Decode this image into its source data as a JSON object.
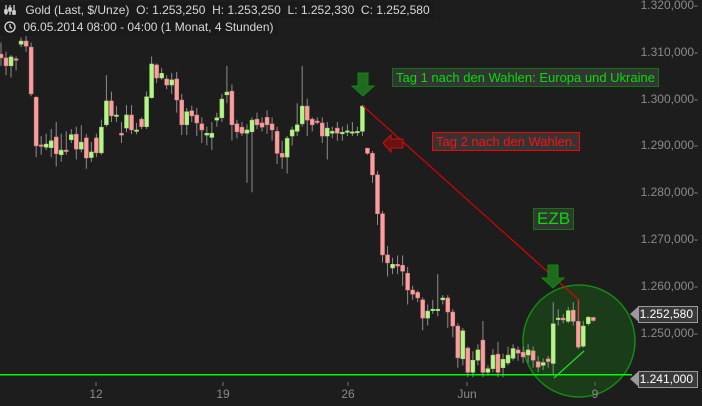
{
  "header": {
    "instrument": "Gold (Last, $/Unze)",
    "open": "O: 1.253,250",
    "high": "H: 1.253,250",
    "low": "L: 1.252,330",
    "close": "C: 1.252,580",
    "period": "06.05.2014 08:00 - 04:00 (1 Monat, 4 Stunden)"
  },
  "annotations": {
    "tag1": "Tag 1 nach den Wahlen: Europa und Ukraine",
    "tag2": "Tag 2 nach den Wahlen.",
    "ezb": "EZB"
  },
  "price_tags": {
    "last": "1.252,580",
    "level": "1.241,000"
  },
  "colors": {
    "background": "#1e1d1d",
    "up": "#b6f58a",
    "down": "#f7a0a0",
    "wick": "#8c8c8c",
    "support_line": "#00ff00",
    "trend_line": "#e00000",
    "tag1": "#00e000",
    "tag2": "#ff0000"
  },
  "chart_data": {
    "type": "candlestick",
    "y_ticks": [
      "1.320,000",
      "1.310,000",
      "1.300,000",
      "1.290,000",
      "1.280,000",
      "1.270,000",
      "1.260,000",
      "1.250,000"
    ],
    "y_tick_values": [
      1320,
      1310,
      1300,
      1290,
      1280,
      1270,
      1260,
      1250
    ],
    "x_ticks": [
      "12",
      "19",
      "26",
      "Jun",
      "9"
    ],
    "ylim": [
      1238,
      1321
    ],
    "support_level": 1241.0,
    "last_price": 1252.58,
    "candles_ohlc": [
      [
        1309.5,
        1312,
        1307,
        1308.7
      ],
      [
        1308.7,
        1310,
        1305,
        1307
      ],
      [
        1307,
        1309.3,
        1304.5,
        1308.9
      ],
      [
        1308.5,
        1309,
        1306,
        1308.2
      ],
      [
        1311.6,
        1313,
        1311,
        1312.3
      ],
      [
        1312.3,
        1315,
        1310,
        1311.2
      ],
      [
        1311,
        1312,
        1300.5,
        1301
      ],
      [
        1300.3,
        1300.5,
        1287.5,
        1289.9
      ],
      [
        1290.1,
        1292,
        1288,
        1289.9
      ],
      [
        1289.6,
        1292.5,
        1289,
        1290.3
      ],
      [
        1289.5,
        1293.5,
        1287.5,
        1291
      ],
      [
        1291.8,
        1295,
        1285.5,
        1288.2
      ],
      [
        1288,
        1292.5,
        1286.5,
        1289
      ],
      [
        1289,
        1293,
        1288,
        1288.8
      ],
      [
        1291.2,
        1293.5,
        1290.5,
        1292.3
      ],
      [
        1292.4,
        1294,
        1287,
        1289.2
      ],
      [
        1289.2,
        1294.3,
        1288.5,
        1290.7
      ],
      [
        1291.6,
        1292.4,
        1285,
        1287.3
      ],
      [
        1287.4,
        1290.7,
        1286.5,
        1288.6
      ],
      [
        1291.6,
        1292.5,
        1287.5,
        1288.4
      ],
      [
        1288.4,
        1295.5,
        1288,
        1293.9
      ],
      [
        1294.4,
        1305,
        1294,
        1299.5
      ],
      [
        1299.5,
        1301.5,
        1295,
        1296.3
      ],
      [
        1296.5,
        1298.4,
        1295,
        1296.5
      ],
      [
        1292.6,
        1295,
        1290.5,
        1292.2
      ],
      [
        1293.7,
        1298.6,
        1292.8,
        1296.5
      ],
      [
        1296.5,
        1298.6,
        1292.4,
        1293.3
      ],
      [
        1293.3,
        1294.8,
        1292.4,
        1293.3
      ],
      [
        1295.6,
        1296,
        1293.5,
        1294
      ],
      [
        1294,
        1301.5,
        1293.5,
        1300.4
      ],
      [
        1300.2,
        1309,
        1300,
        1307.4
      ],
      [
        1307.2,
        1307.5,
        1303.3,
        1304.4
      ],
      [
        1304.4,
        1306.5,
        1304,
        1305.4
      ],
      [
        1304.2,
        1305,
        1302,
        1302.9
      ],
      [
        1302.9,
        1305.5,
        1301,
        1304
      ],
      [
        1304.2,
        1305.7,
        1297,
        1299.7
      ],
      [
        1299.7,
        1301,
        1292.2,
        1294.4
      ],
      [
        1294.4,
        1298,
        1292.2,
        1297.2
      ],
      [
        1297.4,
        1298.5,
        1295,
        1296.3
      ],
      [
        1296.5,
        1298,
        1292,
        1294.8
      ],
      [
        1294.6,
        1296,
        1290.5,
        1293.3
      ],
      [
        1292.2,
        1294,
        1290,
        1292.6
      ],
      [
        1291.7,
        1295,
        1289,
        1292.6
      ],
      [
        1295.4,
        1297,
        1294,
        1295.9
      ],
      [
        1295.9,
        1301,
        1295,
        1299.9
      ],
      [
        1300.8,
        1307,
        1299,
        1301.4
      ],
      [
        1301.6,
        1303,
        1291,
        1294.4
      ],
      [
        1294.6,
        1295.5,
        1291.5,
        1292.9
      ],
      [
        1293.9,
        1295,
        1292,
        1292.6
      ],
      [
        1292.6,
        1294.5,
        1282,
        1293.3
      ],
      [
        1292.9,
        1296,
        1280,
        1295.4
      ],
      [
        1295.6,
        1297,
        1293.5,
        1294.4
      ],
      [
        1294.8,
        1296,
        1293,
        1293.9
      ],
      [
        1296,
        1297.5,
        1292.5,
        1294.4
      ],
      [
        1294.6,
        1296,
        1291,
        1293.3
      ],
      [
        1293,
        1294,
        1286,
        1288.3
      ],
      [
        1288.3,
        1291,
        1285,
        1287.5
      ],
      [
        1287.5,
        1292,
        1284,
        1291.5
      ],
      [
        1292,
        1294,
        1290,
        1293.3
      ],
      [
        1293,
        1299,
        1292,
        1294.4
      ],
      [
        1294.6,
        1307,
        1294,
        1298.4
      ],
      [
        1298.4,
        1300,
        1292,
        1295.4
      ],
      [
        1295.6,
        1296,
        1293,
        1294.4
      ],
      [
        1295.2,
        1296,
        1294.5,
        1295
      ],
      [
        1294.8,
        1296,
        1290.5,
        1292
      ],
      [
        1292,
        1295,
        1287,
        1293.7
      ],
      [
        1292.6,
        1294,
        1291.5,
        1293
      ],
      [
        1293.7,
        1295,
        1291,
        1292.6
      ],
      [
        1292.8,
        1294,
        1291,
        1292.8
      ],
      [
        1293,
        1294.5,
        1292,
        1293.1
      ],
      [
        1292.8,
        1295,
        1292,
        1292.9
      ],
      [
        1292.7,
        1294,
        1292,
        1293
      ],
      [
        1293,
        1298.6,
        1292,
        1298.4
      ],
      [
        1289.4,
        1289.5,
        1288,
        1288.3
      ],
      [
        1288.3,
        1288.8,
        1282,
        1283.7
      ],
      [
        1283.7,
        1284.5,
        1273,
        1275.4
      ],
      [
        1275.4,
        1276,
        1265,
        1266.6
      ],
      [
        1266.6,
        1268.5,
        1262,
        1264.9
      ],
      [
        1263.8,
        1266,
        1262.5,
        1264.6
      ],
      [
        1264.6,
        1266.5,
        1262.5,
        1264.2
      ],
      [
        1264.4,
        1266.5,
        1260,
        1263.1
      ],
      [
        1262.7,
        1264,
        1256,
        1259.1
      ],
      [
        1259.1,
        1260,
        1257,
        1258.2
      ],
      [
        1258.6,
        1259,
        1256.5,
        1257.4
      ],
      [
        1257,
        1257.5,
        1250.5,
        1253.1
      ],
      [
        1253.1,
        1256,
        1251.5,
        1254.6
      ],
      [
        1254.8,
        1257,
        1254,
        1255
      ],
      [
        1255,
        1262.5,
        1253.5,
        1255
      ],
      [
        1257,
        1258,
        1256,
        1257.4
      ],
      [
        1257.4,
        1258,
        1251,
        1254.4
      ],
      [
        1254.4,
        1255,
        1249,
        1251.4
      ],
      [
        1251.4,
        1252,
        1242.5,
        1244.6
      ],
      [
        1244.4,
        1251,
        1243,
        1250.4
      ],
      [
        1246.7,
        1247,
        1240.5,
        1241.5
      ],
      [
        1241.5,
        1246,
        1240.5,
        1244.1
      ],
      [
        1244.1,
        1247.5,
        1243,
        1246.3
      ],
      [
        1248.4,
        1252.5,
        1240.5,
        1241.5
      ],
      [
        1241.5,
        1243,
        1240.8,
        1242.3
      ],
      [
        1242.3,
        1246.5,
        1241.5,
        1245.2
      ],
      [
        1245.4,
        1248,
        1240.5,
        1241.5
      ],
      [
        1242.5,
        1245.5,
        1240.5,
        1244.3
      ],
      [
        1243.5,
        1247,
        1243,
        1245.2
      ],
      [
        1244.5,
        1247.5,
        1244,
        1246.6
      ],
      [
        1246.3,
        1247,
        1244,
        1245.6
      ],
      [
        1245.8,
        1247,
        1243.5,
        1244.8
      ],
      [
        1245.2,
        1247.5,
        1243.5,
        1246.3
      ],
      [
        1246.1,
        1247,
        1242.5,
        1244.1
      ],
      [
        1243.8,
        1245,
        1241.5,
        1242.6
      ],
      [
        1243,
        1244.5,
        1242,
        1243.6
      ],
      [
        1244.4,
        1245,
        1242.5,
        1243.8
      ],
      [
        1243.4,
        1256.5,
        1241.2,
        1251.9
      ],
      [
        1252.9,
        1255,
        1251.5,
        1253.1
      ],
      [
        1253.1,
        1254,
        1252,
        1252.7
      ],
      [
        1252.4,
        1255.5,
        1252,
        1254.7
      ],
      [
        1254.8,
        1256.5,
        1251.5,
        1252.4
      ],
      [
        1252.4,
        1257.2,
        1246.5,
        1246.9
      ],
      [
        1247.1,
        1252.5,
        1246.8,
        1251.4
      ],
      [
        1251.9,
        1253.5,
        1251.5,
        1253.3
      ],
      [
        1253.25,
        1253.25,
        1252.33,
        1252.58
      ]
    ]
  }
}
